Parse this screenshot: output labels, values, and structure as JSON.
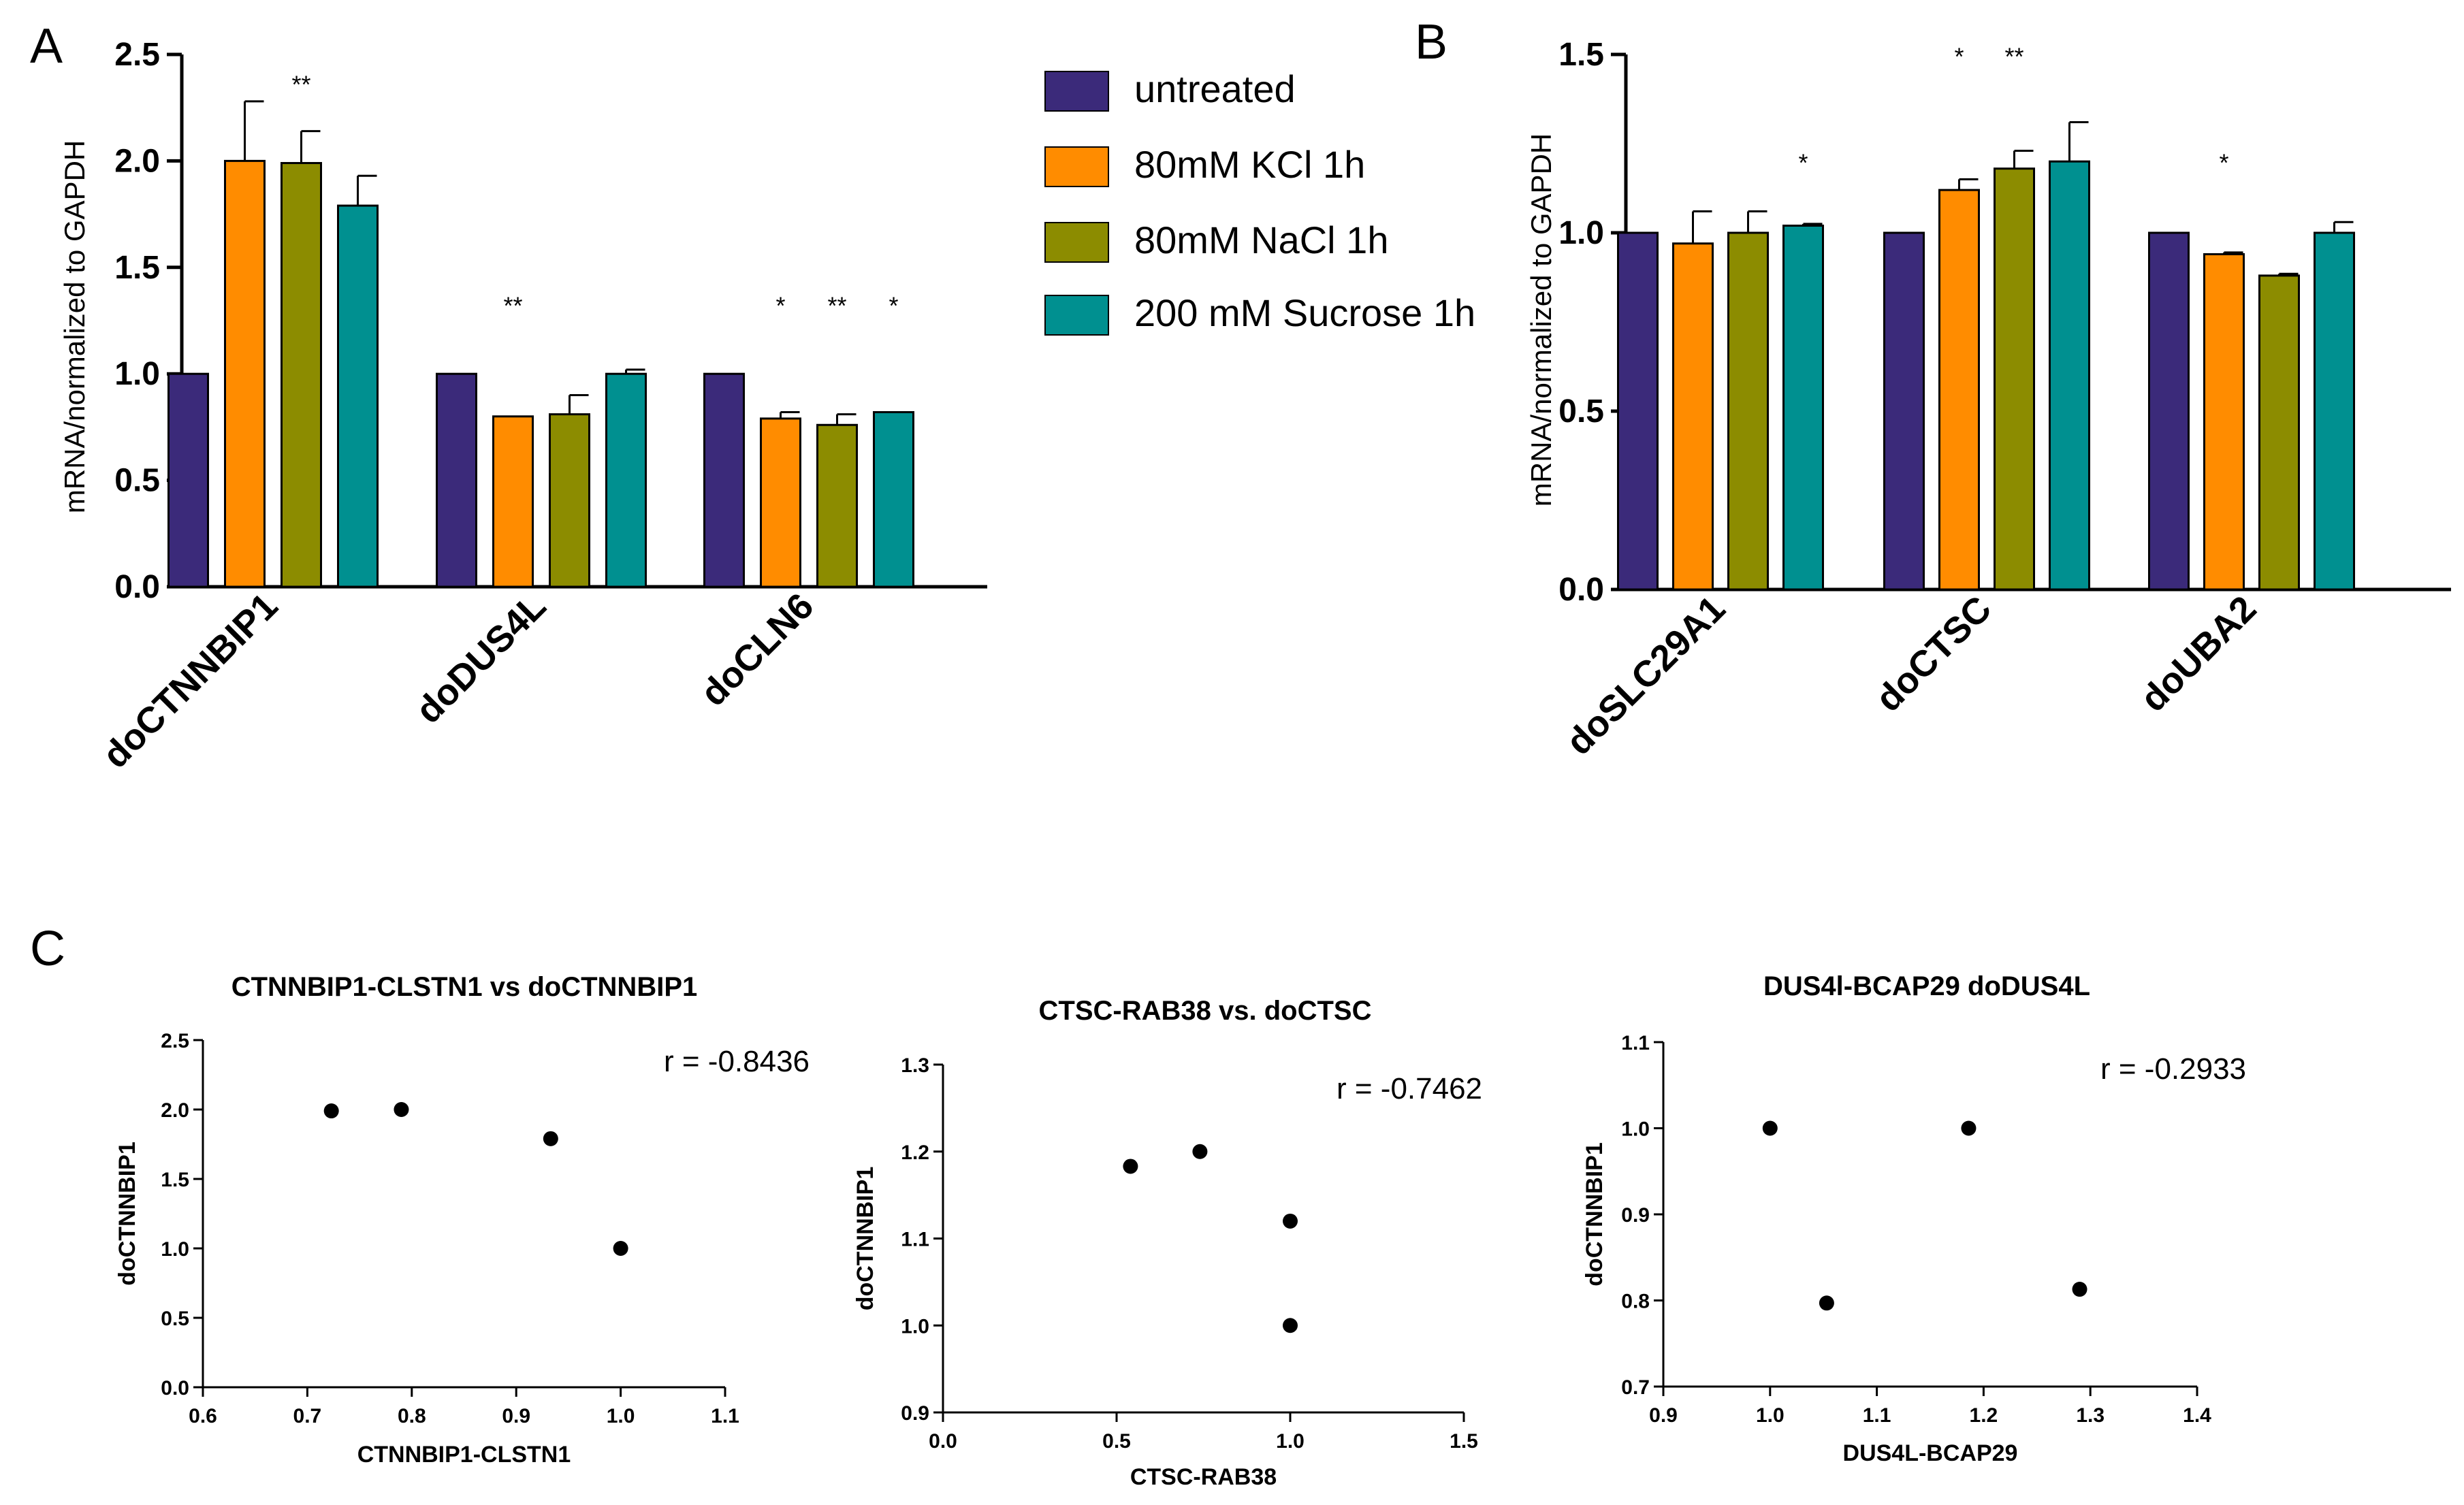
{
  "figure": {
    "panel_letters": [
      "A",
      "B",
      "C"
    ],
    "legend": [
      {
        "label": "untreated",
        "color": "#3b2a7a"
      },
      {
        "label": "80mM KCl 1h",
        "color": "#ff8c00"
      },
      {
        "label": "80mM NaCl 1h",
        "color": "#8c8c00"
      },
      {
        "label": "200 mM Sucrose 1h",
        "color": "#009090"
      }
    ]
  },
  "chart_data": [
    {
      "id": "A",
      "type": "bar",
      "title": "",
      "ylabel": "mRNA/normalized to GAPDH",
      "xlabel": "",
      "ylim": [
        0,
        2.5
      ],
      "yticks": [
        "0.0",
        "0.5",
        "1.0",
        "1.5",
        "2.0",
        "2.5"
      ],
      "categories": [
        "doCTNNBIP1",
        "doDUS4L",
        "doCLN6"
      ],
      "series": [
        {
          "name": "untreated",
          "values": [
            1.0,
            1.0,
            1.0
          ],
          "errors": [
            0,
            0,
            0
          ],
          "sig": [
            "",
            "",
            ""
          ]
        },
        {
          "name": "80mM KCl 1h",
          "values": [
            2.0,
            0.8,
            0.79
          ],
          "errors": [
            0.28,
            0,
            0.03
          ],
          "sig": [
            "",
            "**",
            "*"
          ]
        },
        {
          "name": "80mM NaCl 1h",
          "values": [
            1.99,
            0.81,
            0.76
          ],
          "errors": [
            0.15,
            0.09,
            0.05
          ],
          "sig": [
            "**",
            "",
            "**"
          ]
        },
        {
          "name": "200 mM Sucrose 1h",
          "values": [
            1.79,
            1.0,
            0.82
          ],
          "errors": [
            0.14,
            0.02,
            0
          ],
          "sig": [
            "",
            "",
            "*"
          ]
        }
      ]
    },
    {
      "id": "B",
      "type": "bar",
      "title": "",
      "ylabel": "mRNA/normalized to GAPDH",
      "xlabel": "",
      "ylim": [
        0,
        1.5
      ],
      "yticks": [
        "0.0",
        "0.5",
        "1.0",
        "1.5"
      ],
      "categories": [
        "doSLC29A1",
        "doCTSC",
        "doUBA2"
      ],
      "series": [
        {
          "name": "untreated",
          "values": [
            1.0,
            1.0,
            1.0
          ],
          "errors": [
            0,
            0,
            0
          ],
          "sig": [
            "",
            "",
            ""
          ]
        },
        {
          "name": "80mM KCl 1h",
          "values": [
            0.97,
            1.12,
            0.94
          ],
          "errors": [
            0.09,
            0.03,
            0.005
          ],
          "sig": [
            "",
            "*",
            "*"
          ]
        },
        {
          "name": "80mM NaCl 1h",
          "values": [
            1.0,
            1.18,
            0.88
          ],
          "errors": [
            0.06,
            0.05,
            0.005
          ],
          "sig": [
            "",
            "**",
            ""
          ]
        },
        {
          "name": "200 mM Sucrose 1h",
          "values": [
            1.02,
            1.2,
            1.0
          ],
          "errors": [
            0.005,
            0.11,
            0.03
          ],
          "sig": [
            "*",
            "",
            ""
          ]
        }
      ]
    },
    {
      "id": "C1",
      "type": "scatter",
      "title": "CTNNBIP1-CLSTN1 vs doCTNNBIP1",
      "xlabel": "CTNNBIP1-CLSTN1",
      "ylabel": "doCTNNBIP1",
      "xlim": [
        0.6,
        1.1
      ],
      "ylim": [
        0,
        2.5
      ],
      "xticks": [
        "0.6",
        "0.7",
        "0.8",
        "0.9",
        "1.0",
        "1.1"
      ],
      "yticks": [
        "0.0",
        "0.5",
        "1.0",
        "1.5",
        "2.0",
        "2.5"
      ],
      "x": [
        0.723,
        0.79,
        0.933,
        1.0
      ],
      "y": [
        1.99,
        2.0,
        1.79,
        1.0
      ],
      "annotation": "r =  -0.8436"
    },
    {
      "id": "C2",
      "type": "scatter",
      "title": "CTSC-RAB38 vs. doCTSC",
      "xlabel": "CTSC-RAB38",
      "ylabel": "doCTNNBIP1",
      "xlim": [
        0.0,
        1.5
      ],
      "ylim": [
        0.9,
        1.3
      ],
      "xticks": [
        "0.0",
        "0.5",
        "1.0",
        "1.5"
      ],
      "yticks": [
        "0.9",
        "1.0",
        "1.1",
        "1.2",
        "1.3"
      ],
      "x": [
        0.54,
        0.74,
        1.0,
        1.0
      ],
      "y": [
        1.183,
        1.2,
        1.12,
        1.0
      ],
      "annotation": "r =  -0.7462"
    },
    {
      "id": "C3",
      "type": "scatter",
      "title": "DUS4l-BCAP29 doDUS4L",
      "xlabel": "DUS4L-BCAP29",
      "ylabel": "doCTNNBIP1",
      "xlim": [
        0.9,
        1.4
      ],
      "ylim": [
        0.7,
        1.1
      ],
      "xticks": [
        "0.9",
        "1.0",
        "1.1",
        "1.2",
        "1.3",
        "1.4"
      ],
      "yticks": [
        "0.7",
        "0.8",
        "0.9",
        "1.0",
        "1.1"
      ],
      "x": [
        1.0,
        1.053,
        1.186,
        1.29
      ],
      "y": [
        1.0,
        0.797,
        1.0,
        0.813
      ],
      "annotation": "r =  -0.2933"
    }
  ]
}
